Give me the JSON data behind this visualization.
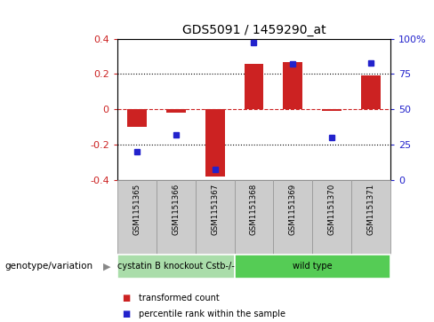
{
  "title": "GDS5091 / 1459290_at",
  "samples": [
    "GSM1151365",
    "GSM1151366",
    "GSM1151367",
    "GSM1151368",
    "GSM1151369",
    "GSM1151370",
    "GSM1151371"
  ],
  "bar_values": [
    -0.1,
    -0.02,
    -0.38,
    0.26,
    0.27,
    -0.01,
    0.19
  ],
  "dot_values": [
    20,
    32,
    8,
    97,
    82,
    30,
    83
  ],
  "bar_color": "#cc2222",
  "dot_color": "#2222cc",
  "ylim_left": [
    -0.4,
    0.4
  ],
  "ylim_right": [
    0,
    100
  ],
  "yticks_left": [
    -0.4,
    -0.2,
    0.0,
    0.2,
    0.4
  ],
  "yticks_right": [
    0,
    25,
    50,
    75,
    100
  ],
  "ytick_labels_right": [
    "0",
    "25",
    "50",
    "75",
    "100%"
  ],
  "groups": [
    {
      "label": "cystatin B knockout Cstb-/-",
      "samples": [
        0,
        1,
        2
      ],
      "color": "#aaddaa"
    },
    {
      "label": "wild type",
      "samples": [
        3,
        4,
        5,
        6
      ],
      "color": "#55cc55"
    }
  ],
  "group_label": "genotype/variation",
  "legend_bar_label": "transformed count",
  "legend_dot_label": "percentile rank within the sample",
  "bg_color": "#ffffff",
  "sample_box_color": "#cccccc",
  "sample_box_edge": "#999999"
}
